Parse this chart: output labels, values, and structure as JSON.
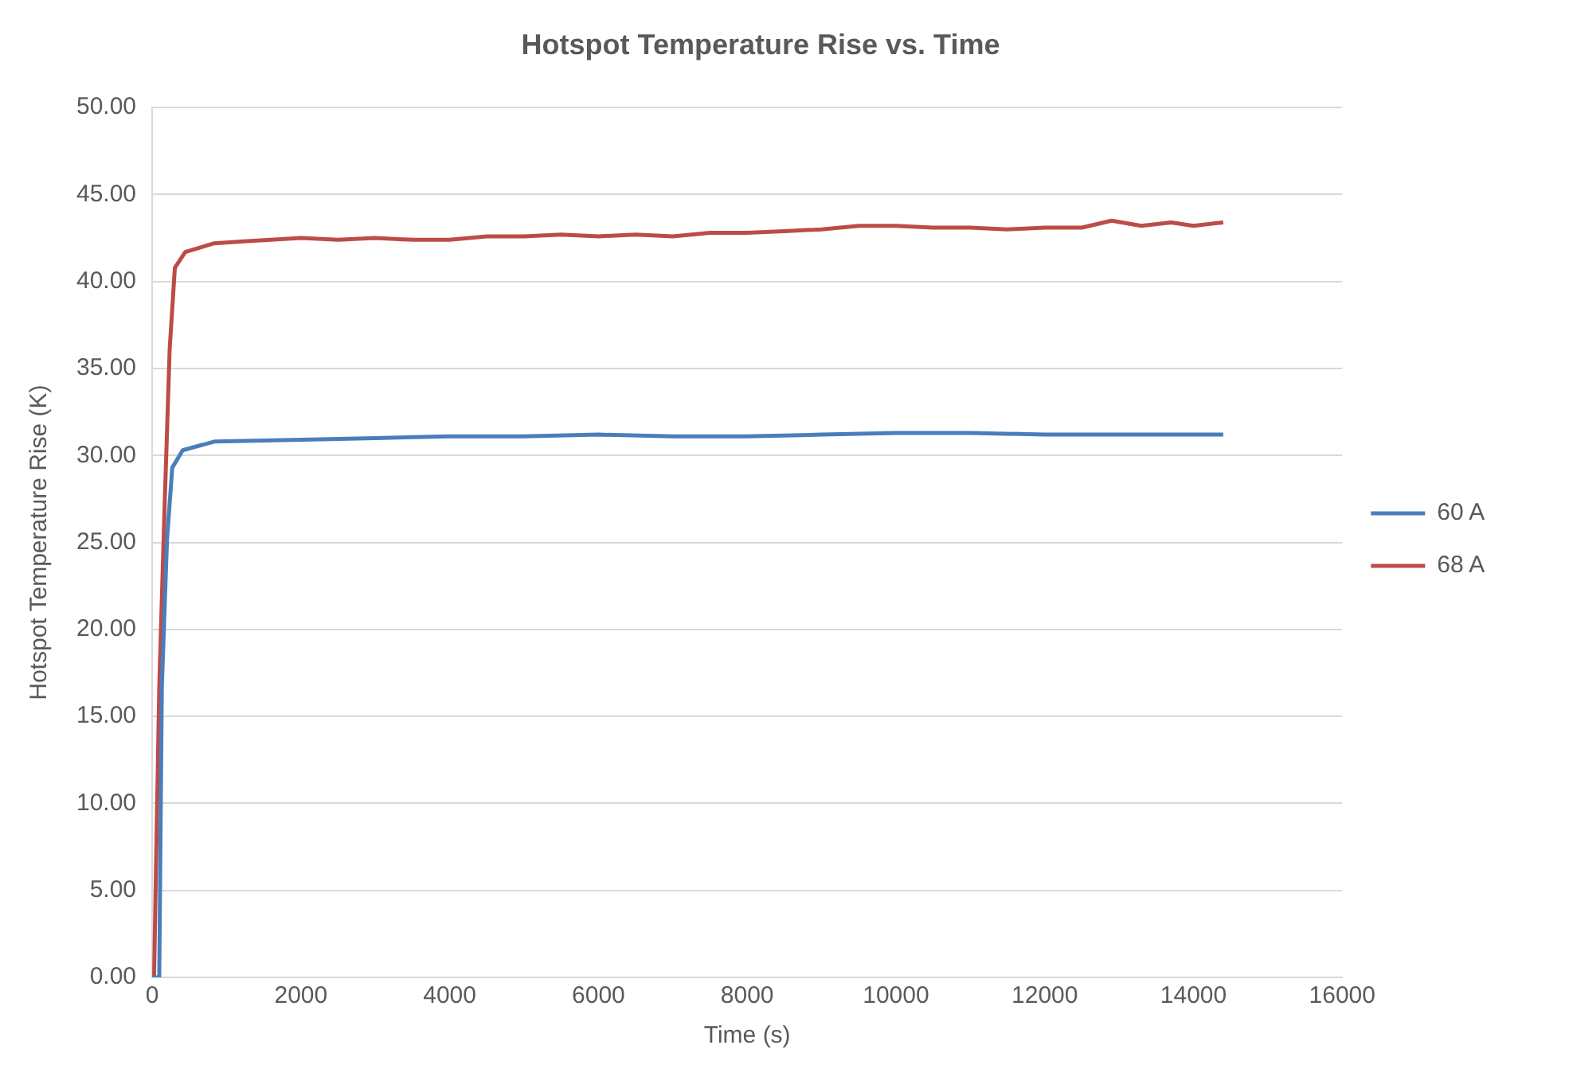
{
  "chart_data": {
    "type": "line",
    "title": "Hotspot Temperature Rise vs. Time",
    "xlabel": "Time (s)",
    "ylabel": "Hotspot Temperature Rise (K)",
    "xlim": [
      0,
      16000
    ],
    "xticks": [
      0,
      2000,
      4000,
      6000,
      8000,
      10000,
      12000,
      14000,
      16000
    ],
    "ylim": [
      0,
      50
    ],
    "yticks": [
      {
        "value": 0,
        "label": "0.00"
      },
      {
        "value": 5,
        "label": "5.00"
      },
      {
        "value": 10,
        "label": "10.00"
      },
      {
        "value": 15,
        "label": "15.00"
      },
      {
        "value": 20,
        "label": "20.00"
      },
      {
        "value": 25,
        "label": "25.00"
      },
      {
        "value": 30,
        "label": "30.00"
      },
      {
        "value": 35,
        "label": "35.00"
      },
      {
        "value": 40,
        "label": "40.00"
      },
      {
        "value": 45,
        "label": "45.00"
      },
      {
        "value": 50,
        "label": "50.00"
      }
    ],
    "grid": "y",
    "legend": "right",
    "marker": "none",
    "line_style": "solid",
    "series": [
      {
        "name": "60 A",
        "color": "#4a7ebb",
        "x": [
          0,
          95,
          130,
          200,
          270,
          410,
          835,
          1890,
          3000,
          4000,
          5000,
          6000,
          7000,
          8000,
          9000,
          10000,
          11000,
          12000,
          13000,
          14000,
          14400
        ],
        "values": [
          0,
          0,
          16.7,
          25.2,
          29.3,
          30.3,
          30.8,
          30.9,
          31.0,
          31.1,
          31.1,
          31.2,
          31.1,
          31.1,
          31.2,
          31.3,
          31.3,
          31.2,
          31.2,
          31.2,
          31.2
        ]
      },
      {
        "name": "68 A",
        "color": "#be4b48",
        "x": [
          0,
          25,
          95,
          165,
          235,
          305,
          445,
          835,
          1190,
          2000,
          2500,
          3000,
          3500,
          4000,
          4500,
          5000,
          5500,
          6000,
          6500,
          7000,
          7500,
          8000,
          8500,
          9000,
          9500,
          10000,
          10500,
          11000,
          11500,
          12000,
          12500,
          12900,
          13300,
          13700,
          14000,
          14400
        ],
        "values": [
          0,
          0,
          16.7,
          26.8,
          36.1,
          40.8,
          41.7,
          42.2,
          42.3,
          42.5,
          42.4,
          42.5,
          42.4,
          42.4,
          42.6,
          42.6,
          42.7,
          42.6,
          42.7,
          42.6,
          42.8,
          42.8,
          42.9,
          43.0,
          43.2,
          43.2,
          43.1,
          43.1,
          43.0,
          43.1,
          43.1,
          43.5,
          43.2,
          43.4,
          43.2,
          43.4
        ]
      }
    ]
  }
}
